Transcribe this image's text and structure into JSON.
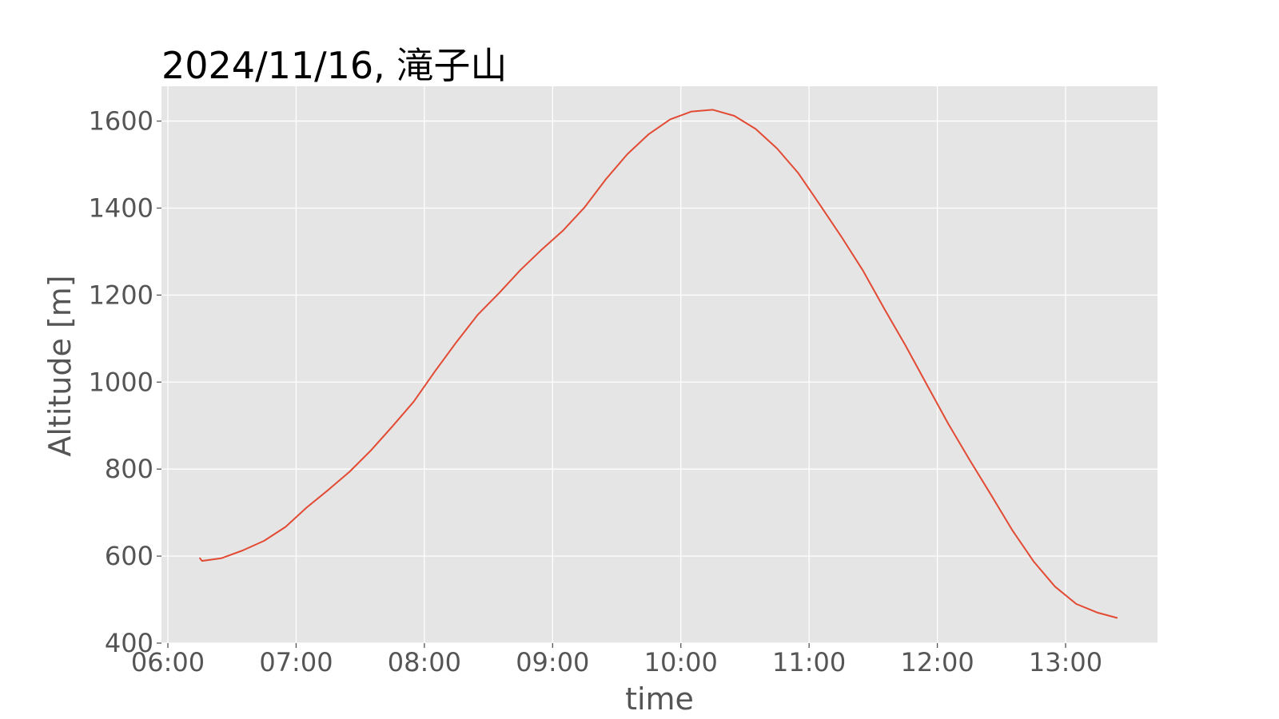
{
  "chart_data": {
    "type": "line",
    "title": "2024/11/16, 滝子山",
    "xlabel": "time",
    "ylabel": "Altitude [m]",
    "x_ticks": [
      "06:00",
      "07:00",
      "08:00",
      "09:00",
      "10:00",
      "11:00",
      "12:00",
      "13:00"
    ],
    "y_ticks": [
      "400",
      "600",
      "800",
      "1000",
      "1200",
      "1400",
      "1600"
    ],
    "xlim": [
      "05:57",
      "13:43"
    ],
    "ylim": [
      400,
      1680
    ],
    "grid": true,
    "colors": {
      "plot_background": "#e5e5e5",
      "grid": "#ffffff",
      "line": "#e24a33"
    },
    "series": [
      {
        "x": [
          "06:15",
          "06:16",
          "06:25",
          "06:35",
          "06:45",
          "06:55",
          "07:05",
          "07:15",
          "07:25",
          "07:35",
          "07:45",
          "07:55",
          "08:05",
          "08:15",
          "08:25",
          "08:35",
          "08:45",
          "08:55",
          "09:05",
          "09:15",
          "09:25",
          "09:35",
          "09:45",
          "09:55",
          "10:05",
          "10:15",
          "10:25",
          "10:35",
          "10:45",
          "10:55",
          "11:05",
          "11:15",
          "11:25",
          "11:35",
          "11:45",
          "11:55",
          "12:05",
          "12:15",
          "12:25",
          "12:35",
          "12:45",
          "12:55",
          "13:05",
          "13:15",
          "13:24"
        ],
        "y": [
          595,
          589,
          595,
          613,
          635,
          667,
          712,
          752,
          794,
          843,
          898,
          955,
          1025,
          1092,
          1155,
          1205,
          1258,
          1305,
          1349,
          1402,
          1467,
          1524,
          1570,
          1604,
          1622,
          1626,
          1612,
          1582,
          1537,
          1480,
          1408,
          1335,
          1258,
          1170,
          1085,
          995,
          905,
          822,
          742,
          660,
          588,
          530,
          490,
          470,
          458
        ]
      }
    ]
  }
}
